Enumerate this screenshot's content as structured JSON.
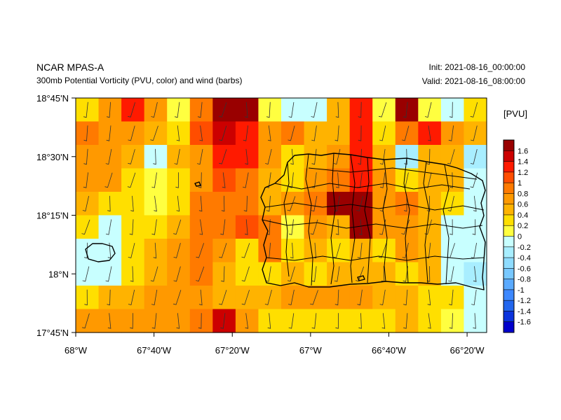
{
  "header": {
    "title": "NCAR MPAS-A",
    "subtitle": "300mb Potential Vorticity (PVU, color) and wind (barbs)",
    "init": "Init: 2021-08-16_00:00:00",
    "valid": "Valid: 2021-08-16_08:00:00"
  },
  "colorbar": {
    "units": "[PVU]",
    "labels": [
      "1.6",
      "1.4",
      "1.2",
      "1",
      "0.8",
      "0.6",
      "0.4",
      "0.2",
      "0",
      "-0.2",
      "-0.4",
      "-0.6",
      "-0.8",
      "-1",
      "-1.2",
      "-1.4",
      "-1.6"
    ],
    "colors": [
      "#990000",
      "#cc0000",
      "#ff1a00",
      "#ff4d00",
      "#ff7a00",
      "#ff9900",
      "#ffb300",
      "#ffdf00",
      "#ffff40",
      "#c8ffff",
      "#a8eeff",
      "#8fdcff",
      "#78c8ff",
      "#5aaaff",
      "#3d88ff",
      "#2266ee",
      "#0a33dd",
      "#0000cc"
    ]
  },
  "axes": {
    "x_ticks": [
      "68°W",
      "67°40'W",
      "67°20'W",
      "67°W",
      "66°40'W",
      "66°20'W"
    ],
    "y_ticks": [
      "18°45'N",
      "18°30'N",
      "18°15'N",
      "18°N",
      "17°45'N"
    ]
  },
  "chart_data": {
    "type": "heatmap",
    "field": "300mb potential vorticity (PVU)",
    "lon_range": [
      -68.0,
      -66.25
    ],
    "lat_range": [
      17.75,
      18.75
    ],
    "grid": {
      "cols": 18,
      "rows": 10,
      "values": [
        [
          0.2,
          0.6,
          1.3,
          0.6,
          0.0,
          0.8,
          1.7,
          1.6,
          0.0,
          -0.1,
          -0.2,
          0.4,
          1.2,
          0.0,
          1.7,
          0.0,
          -0.1,
          0.3
        ],
        [
          0.8,
          0.7,
          0.7,
          0.4,
          0.2,
          1.0,
          1.4,
          1.3,
          0.6,
          0.8,
          0.4,
          0.5,
          1.2,
          0.2,
          0.8,
          1.3,
          0.6,
          0.4
        ],
        [
          0.7,
          0.7,
          0.4,
          -0.1,
          0.4,
          0.7,
          1.3,
          1.3,
          0.6,
          0.3,
          0.5,
          0.6,
          1.2,
          0.4,
          -0.3,
          0.4,
          0.5,
          -0.3
        ],
        [
          0.7,
          0.7,
          0.2,
          0.0,
          0.2,
          0.7,
          1.1,
          0.9,
          0.4,
          0.3,
          0.6,
          0.8,
          1.2,
          0.7,
          0.3,
          0.5,
          0.4,
          -0.1
        ],
        [
          0.4,
          0.3,
          0.2,
          0.1,
          0.3,
          0.8,
          0.8,
          0.8,
          0.5,
          0.7,
          0.9,
          1.6,
          1.6,
          0.7,
          0.9,
          0.4,
          0.2,
          -0.1
        ],
        [
          0.2,
          -0.1,
          0.2,
          0.3,
          0.4,
          0.8,
          0.8,
          1.0,
          0.9,
          0.0,
          0.6,
          0.5,
          1.6,
          0.6,
          0.6,
          0.4,
          -0.1,
          -0.2
        ],
        [
          -0.1,
          -0.2,
          0.3,
          0.5,
          0.6,
          0.8,
          0.6,
          0.3,
          0.8,
          0.3,
          0.5,
          0.3,
          0.4,
          0.3,
          0.6,
          0.4,
          -0.1,
          -0.2
        ],
        [
          -0.2,
          -0.1,
          0.3,
          0.5,
          0.6,
          0.8,
          0.5,
          0.2,
          0.3,
          0.4,
          0.3,
          0.4,
          0.5,
          0.4,
          0.3,
          0.5,
          -0.1,
          -0.3
        ],
        [
          0.3,
          0.5,
          0.5,
          0.6,
          0.6,
          0.7,
          0.5,
          0.4,
          0.5,
          0.6,
          0.6,
          0.6,
          0.6,
          0.5,
          0.4,
          0.3,
          0.2,
          -0.1
        ],
        [
          0.6,
          0.6,
          0.6,
          0.6,
          0.7,
          0.9,
          1.4,
          0.6,
          0.3,
          0.2,
          0.2,
          0.2,
          0.2,
          0.2,
          0.5,
          0.2,
          0.0,
          -0.1
        ]
      ]
    }
  }
}
